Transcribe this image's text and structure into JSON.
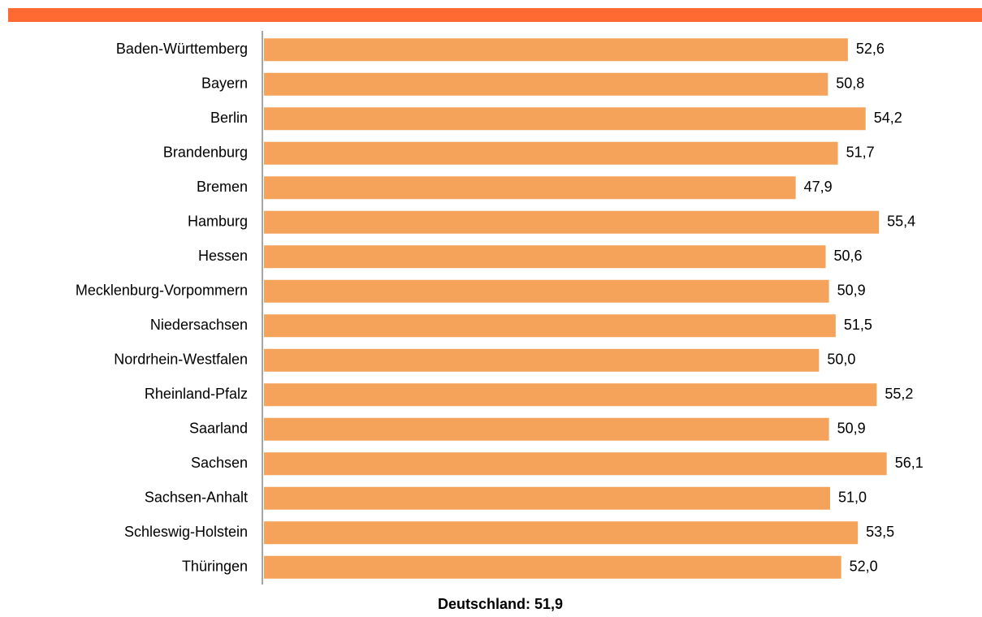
{
  "chart_data": {
    "type": "bar",
    "orientation": "horizontal",
    "categories": [
      "Baden-Württemberg",
      "Bayern",
      "Berlin",
      "Brandenburg",
      "Bremen",
      "Hamburg",
      "Hessen",
      "Mecklenburg-Vorpommern",
      "Niedersachsen",
      "Nordrhein-Westfalen",
      "Rheinland-Pfalz",
      "Saarland",
      "Sachsen",
      "Sachsen-Anhalt",
      "Schleswig-Holstein",
      "Thüringen"
    ],
    "values": [
      52.6,
      50.8,
      54.2,
      51.7,
      47.9,
      55.4,
      50.6,
      50.9,
      51.5,
      50.0,
      55.2,
      50.9,
      56.1,
      51.0,
      53.5,
      52.0
    ],
    "value_labels": [
      "52,6",
      "50,8",
      "54,2",
      "51,7",
      "47,9",
      "55,4",
      "50,6",
      "50,9",
      "51,5",
      "50,0",
      "55,2",
      "50,9",
      "56,1",
      "51,0",
      "53,5",
      "52,0"
    ],
    "color": "#f5a25a",
    "xlim": [
      0,
      60
    ],
    "annotation": "Deutschland: 51,9"
  }
}
